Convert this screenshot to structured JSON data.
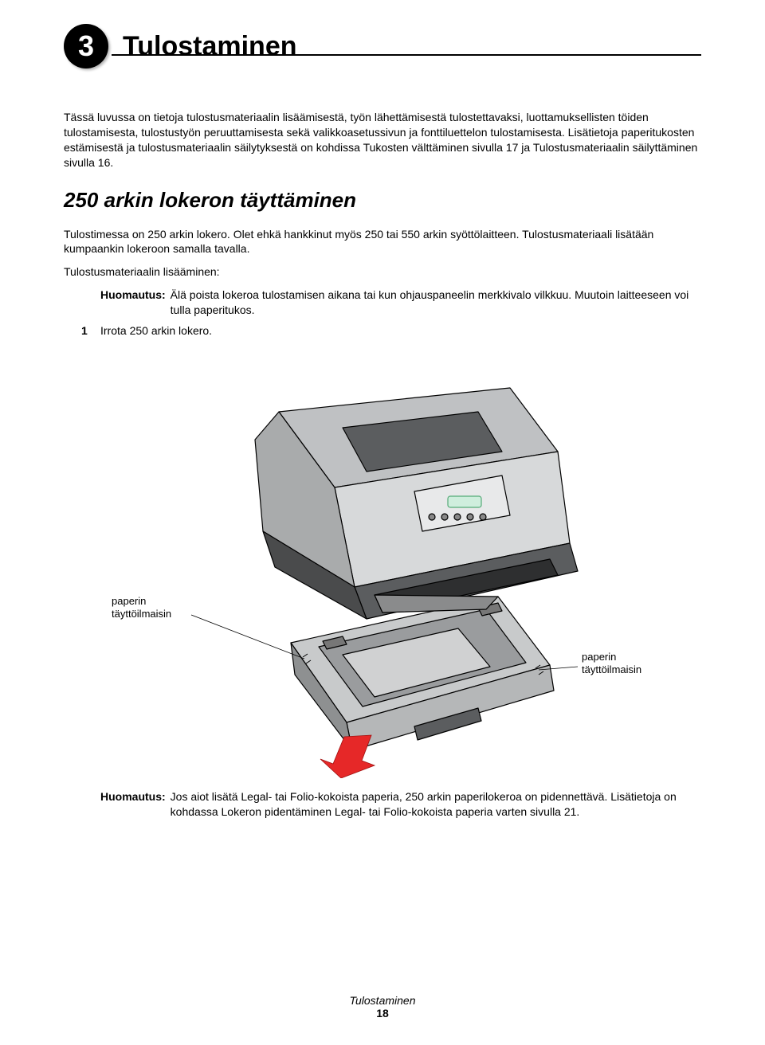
{
  "chapter": {
    "number": "3",
    "title": "Tulostaminen"
  },
  "intro": "Tässä luvussa on tietoja tulostusmateriaalin lisäämisestä, työn lähettämisestä tulostettavaksi, luottamuksellisten töiden tulostamisesta, tulostustyön peruuttamisesta sekä valikkoasetussivun ja fonttiluettelon tulostamisesta. Lisätietoja paperitukosten estämisestä ja tulostusmateriaalin säilytyksestä on kohdissa Tukosten välttäminen sivulla 17 ja Tulostusmateriaalin säilyttäminen sivulla 16.",
  "section": {
    "heading": "250 arkin lokeron täyttäminen",
    "para1": "Tulostimessa on 250 arkin lokero. Olet ehkä hankkinut myös 250 tai 550 arkin syöttölaitteen. Tulostusmateriaali lisätään kumpaankin lokeroon samalla tavalla.",
    "para2": "Tulostusmateriaalin lisääminen:",
    "note1": {
      "label": "Huomautus:",
      "text": "Älä poista lokeroa tulostamisen aikana tai kun ohjauspaneelin merkkivalo vilkkuu. Muutoin laitteeseen voi tulla paperitukos."
    },
    "step1": {
      "num": "1",
      "text": "Irrota 250 arkin lokero."
    },
    "figure": {
      "callout_left": "paperin\ntäyttöilmaisin",
      "callout_right": "paperin\ntäyttöilmaisin",
      "printer_body_color": "#bfc1c3",
      "printer_dark_color": "#5b5d5f",
      "tray_color": "#9a9c9e",
      "arrow_color": "#e62828"
    },
    "note2": {
      "label": "Huomautus:",
      "text": "Jos aiot lisätä Legal- tai Folio-kokoista paperia, 250 arkin paperilokeroa on pidennettävä. Lisätietoja on kohdassa Lokeron pidentäminen Legal- tai Folio-kokoista paperia varten sivulla 21."
    }
  },
  "footer": {
    "title": "Tulostaminen",
    "page": "18"
  }
}
